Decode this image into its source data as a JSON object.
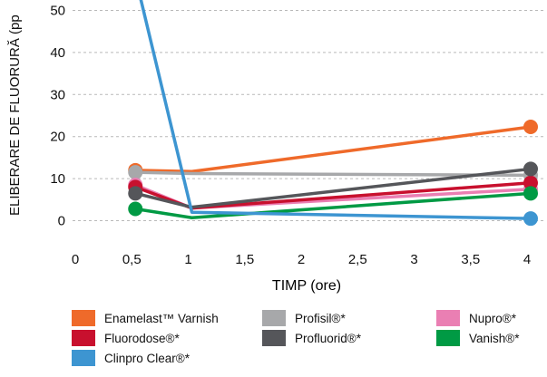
{
  "chart_data": {
    "type": "line",
    "xlabel": "TIMP (ore)",
    "ylabel": "ELIBERARE DE FLUORURĂ (pp",
    "xlim": [
      0,
      4
    ],
    "ylim": [
      0,
      50
    ],
    "x_ticks": [
      "0",
      "0,5",
      "1",
      "1,5",
      "2",
      "2,5",
      "3",
      "3,5",
      "4"
    ],
    "y_ticks": [
      "0",
      "10",
      "20",
      "30",
      "40",
      "50"
    ],
    "grid": "horizontal dashed",
    "legend_position": "bottom",
    "series": [
      {
        "name": "Enamelast™ Varnish",
        "color": "#ef6a2a",
        "x": [
          0.5,
          1,
          4
        ],
        "y": [
          12,
          11.7,
          22.3
        ]
      },
      {
        "name": "Profisil®*",
        "color": "#a7a8aa",
        "x": [
          0.5,
          1,
          4
        ],
        "y": [
          11.5,
          11.2,
          10.8
        ]
      },
      {
        "name": "Nupro®*",
        "color": "#ea7fb3",
        "x": [
          0.5,
          1,
          4
        ],
        "y": [
          8.5,
          3,
          7.5
        ]
      },
      {
        "name": "Fluorodose®*",
        "color": "#c8102e",
        "x": [
          0.5,
          1,
          4
        ],
        "y": [
          8,
          3,
          9
        ]
      },
      {
        "name": "Profluorid®*",
        "color": "#55565a",
        "x": [
          0.5,
          1,
          4
        ],
        "y": [
          6.5,
          3.2,
          12.3
        ]
      },
      {
        "name": "Vanish®*",
        "color": "#009a44",
        "x": [
          0.5,
          1,
          4
        ],
        "y": [
          2.8,
          0.7,
          6.5
        ]
      },
      {
        "name": "Clinpro Clear®*",
        "color": "#3d95d1",
        "x": [
          0.5,
          1,
          4
        ],
        "y": [
          58,
          2,
          0.5
        ]
      }
    ]
  }
}
